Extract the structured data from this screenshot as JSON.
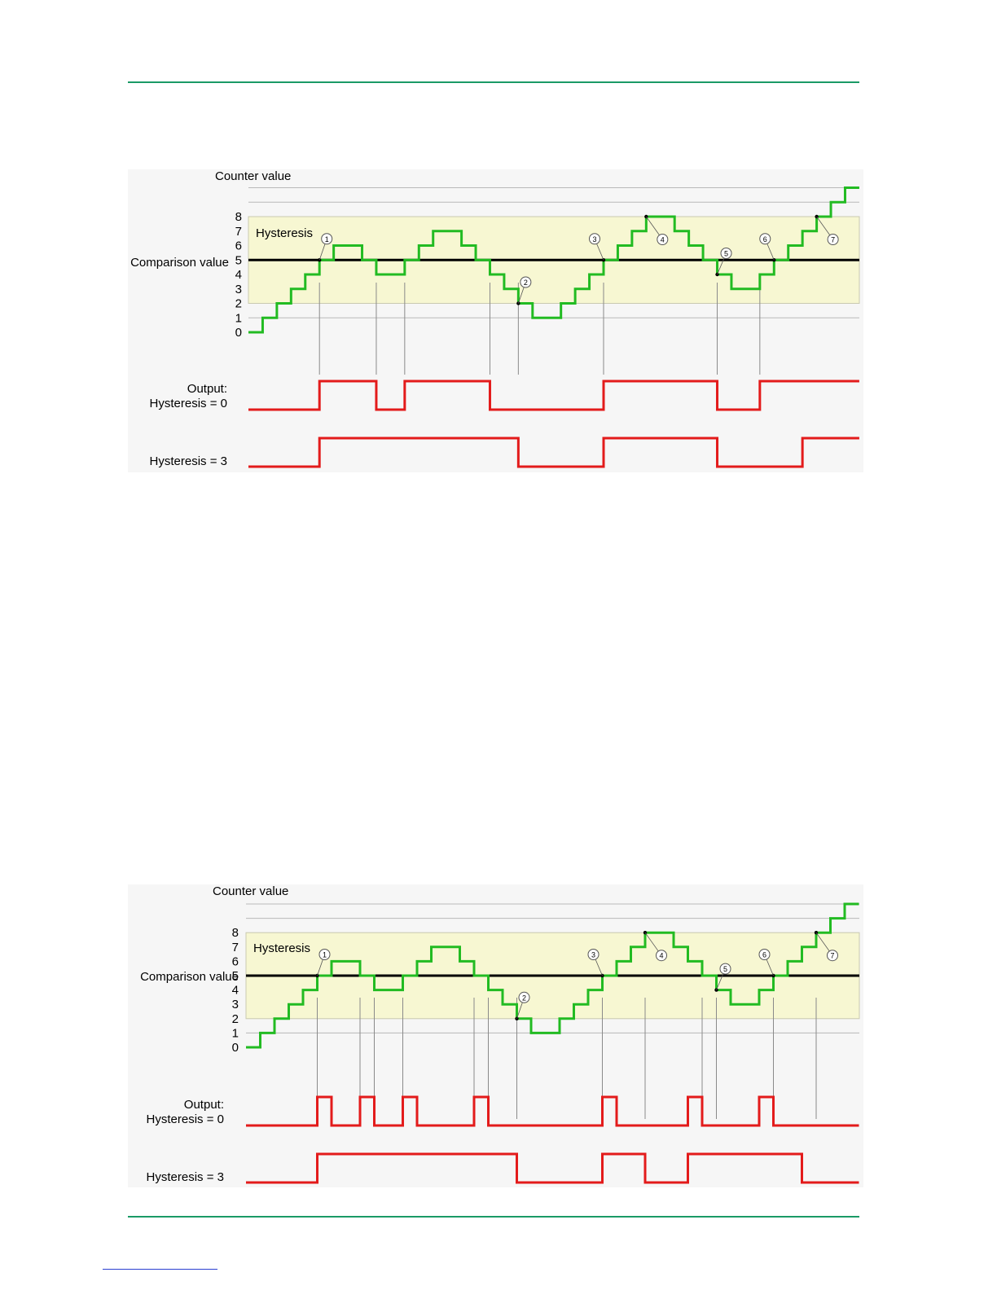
{
  "diagrams": [
    {
      "y_axis_title": "Counter value",
      "hysteresis_label": "Hysteresis",
      "comparison_label": "Comparison value",
      "y_ticks": [
        "0",
        "1",
        "2",
        "3",
        "4",
        "5",
        "6",
        "7",
        "8"
      ],
      "output_label_line1": "Output:",
      "output_label_line2": "Hysteresis = 0",
      "hysteresis3_label": "Hysteresis = 3",
      "markers": [
        "1",
        "2",
        "3",
        "4",
        "5",
        "6",
        "7"
      ],
      "chart_data": {
        "type": "step",
        "counter_values": [
          0,
          1,
          2,
          3,
          4,
          5,
          6,
          6,
          5,
          4,
          4,
          5,
          6,
          7,
          7,
          6,
          5,
          4,
          3,
          2,
          1,
          1,
          2,
          3,
          4,
          5,
          6,
          7,
          8,
          8,
          7,
          6,
          5,
          4,
          3,
          3,
          4,
          5,
          6,
          7,
          8,
          9,
          10
        ],
        "comparison_value": 5,
        "hysteresis_band": [
          2,
          8
        ],
        "hysteresis_0_output": [
          0,
          0,
          0,
          0,
          0,
          1,
          1,
          1,
          1,
          0,
          0,
          1,
          1,
          1,
          1,
          1,
          1,
          0,
          0,
          0,
          0,
          0,
          0,
          0,
          0,
          1,
          1,
          1,
          1,
          1,
          1,
          1,
          1,
          0,
          0,
          0,
          1,
          1,
          1,
          1,
          1,
          1,
          1
        ],
        "hysteresis_3_output": [
          0,
          0,
          0,
          0,
          0,
          1,
          1,
          1,
          1,
          1,
          1,
          1,
          1,
          1,
          1,
          1,
          1,
          1,
          1,
          0,
          0,
          0,
          0,
          0,
          0,
          1,
          1,
          1,
          1,
          1,
          1,
          1,
          1,
          0,
          0,
          0,
          0,
          0,
          0,
          1,
          1,
          1,
          1
        ]
      }
    },
    {
      "y_axis_title": "Counter value",
      "hysteresis_label": "Hysteresis",
      "comparison_label": "Comparison value",
      "y_ticks": [
        "0",
        "1",
        "2",
        "3",
        "4",
        "5",
        "6",
        "7",
        "8"
      ],
      "output_label_line1": "Output:",
      "output_label_line2": "Hysteresis = 0",
      "hysteresis3_label": "Hysteresis = 3",
      "markers": [
        "1",
        "2",
        "3",
        "4",
        "5",
        "6",
        "7"
      ],
      "chart_data": {
        "type": "step",
        "counter_values": [
          0,
          1,
          2,
          3,
          4,
          5,
          6,
          6,
          5,
          4,
          4,
          5,
          6,
          7,
          7,
          6,
          5,
          4,
          3,
          2,
          1,
          1,
          2,
          3,
          4,
          5,
          6,
          7,
          8,
          8,
          7,
          6,
          5,
          4,
          3,
          3,
          4,
          5,
          6,
          7,
          8,
          9,
          10
        ],
        "comparison_value": 5,
        "hysteresis_band": [
          2,
          8
        ],
        "hysteresis_0_output": [
          0,
          0,
          0,
          0,
          0,
          1,
          0,
          0,
          1,
          0,
          0,
          1,
          0,
          0,
          0,
          0,
          1,
          0,
          0,
          0,
          0,
          0,
          0,
          0,
          0,
          1,
          0,
          0,
          0,
          0,
          0,
          1,
          0,
          0,
          0,
          0,
          1,
          0,
          0,
          0,
          0,
          0,
          0
        ],
        "hysteresis_3_output": [
          0,
          0,
          0,
          0,
          0,
          1,
          1,
          1,
          1,
          1,
          1,
          1,
          1,
          1,
          1,
          1,
          1,
          1,
          1,
          0,
          0,
          0,
          0,
          0,
          0,
          1,
          1,
          1,
          0,
          0,
          0,
          1,
          1,
          1,
          1,
          1,
          1,
          1,
          1,
          0,
          0,
          0,
          0
        ]
      }
    }
  ]
}
